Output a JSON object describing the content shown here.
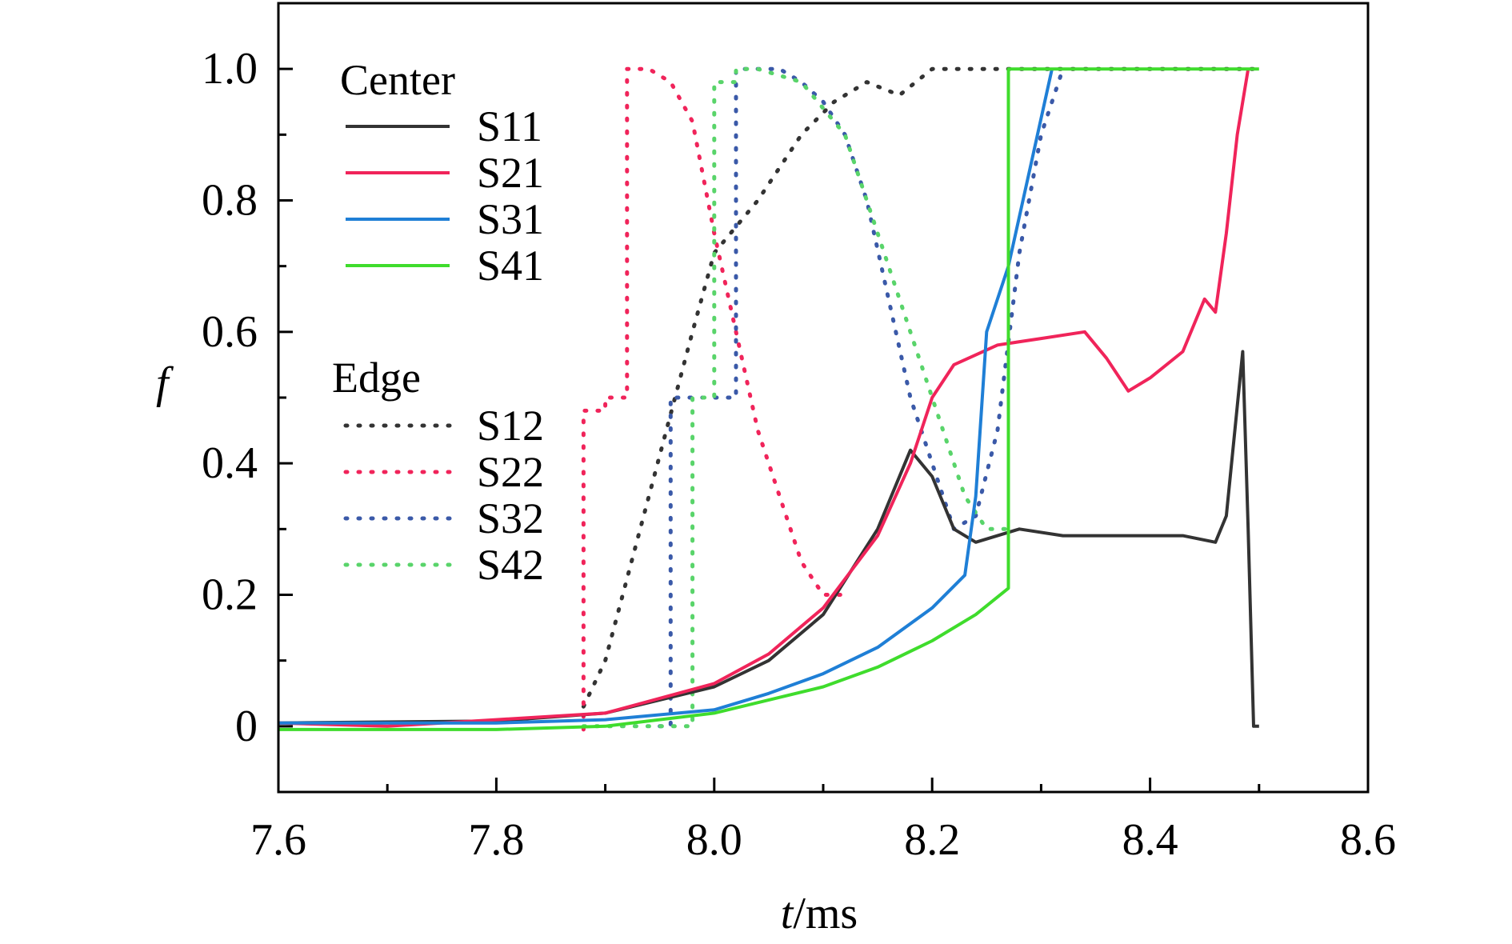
{
  "chart_data": {
    "type": "line",
    "title": "",
    "xlabel": {
      "italic": "t",
      "rest": "/ms"
    },
    "ylabel": "f",
    "xlim": [
      7.6,
      8.6
    ],
    "ylim": [
      -0.1,
      1.1
    ],
    "xticks": [
      7.6,
      7.8,
      8.0,
      8.2,
      8.4,
      8.6
    ],
    "xtick_labels": [
      "7.6",
      "7.8",
      "8.0",
      "8.2",
      "8.4",
      "8.6"
    ],
    "yticks": [
      0,
      0.2,
      0.4,
      0.6,
      0.8,
      1.0
    ],
    "ytick_labels": [
      "0",
      "0.2",
      "0.4",
      "0.6",
      "0.8",
      "1.0"
    ],
    "grid": false,
    "legend": {
      "position": "top-left",
      "groups": [
        {
          "title": "Center",
          "entries": [
            "S11",
            "S21",
            "S31",
            "S41"
          ]
        },
        {
          "title": "Edge",
          "entries": [
            "S12",
            "S22",
            "S32",
            "S42"
          ]
        }
      ]
    },
    "series": [
      {
        "name": "S11",
        "color": "#333333",
        "style": "solid",
        "x": [
          7.6,
          7.8,
          7.9,
          8.0,
          8.05,
          8.1,
          8.15,
          8.18,
          8.2,
          8.22,
          8.24,
          8.26,
          8.28,
          8.32,
          8.38,
          8.43,
          8.46,
          8.47,
          8.485,
          8.49,
          8.495,
          8.5
        ],
        "y": [
          0.005,
          0.008,
          0.02,
          0.06,
          0.1,
          0.17,
          0.3,
          0.42,
          0.38,
          0.3,
          0.28,
          0.29,
          0.3,
          0.29,
          0.29,
          0.29,
          0.28,
          0.32,
          0.57,
          0.3,
          0.0,
          0.0
        ]
      },
      {
        "name": "S21",
        "color": "#f0245a",
        "style": "solid",
        "x": [
          7.6,
          7.7,
          7.8,
          7.9,
          8.0,
          8.05,
          8.1,
          8.15,
          8.18,
          8.2,
          8.22,
          8.26,
          8.3,
          8.34,
          8.36,
          8.38,
          8.4,
          8.43,
          8.45,
          8.46,
          8.47,
          8.48,
          8.49
        ],
        "y": [
          0.005,
          0.0,
          0.01,
          0.02,
          0.065,
          0.11,
          0.18,
          0.29,
          0.4,
          0.5,
          0.55,
          0.58,
          0.59,
          0.6,
          0.56,
          0.51,
          0.53,
          0.57,
          0.65,
          0.63,
          0.75,
          0.9,
          1.0
        ]
      },
      {
        "name": "S31",
        "color": "#1f7fd6",
        "style": "solid",
        "x": [
          7.6,
          7.8,
          7.9,
          8.0,
          8.05,
          8.1,
          8.15,
          8.2,
          8.23,
          8.24,
          8.25,
          8.27,
          8.29,
          8.31
        ],
        "y": [
          0.005,
          0.005,
          0.01,
          0.025,
          0.05,
          0.08,
          0.12,
          0.18,
          0.23,
          0.35,
          0.6,
          0.7,
          0.85,
          1.0
        ]
      },
      {
        "name": "S41",
        "color": "#3fdc2c",
        "style": "solid",
        "x": [
          7.6,
          7.8,
          7.9,
          8.0,
          8.1,
          8.15,
          8.2,
          8.24,
          8.27,
          8.27,
          8.5
        ],
        "y": [
          -0.005,
          -0.005,
          0.0,
          0.02,
          0.06,
          0.09,
          0.13,
          0.17,
          0.21,
          1.0,
          1.0
        ]
      },
      {
        "name": "S12",
        "color": "#333333",
        "style": "dotted",
        "x": [
          7.88,
          7.9,
          7.94,
          7.98,
          8.0,
          8.04,
          8.08,
          8.11,
          8.14,
          8.17,
          8.2,
          8.3,
          8.5
        ],
        "y": [
          0.03,
          0.1,
          0.35,
          0.6,
          0.72,
          0.8,
          0.9,
          0.95,
          0.98,
          0.96,
          1.0,
          1.0,
          1.0
        ]
      },
      {
        "name": "S22",
        "color": "#f0245a",
        "style": "dotted",
        "x": [
          7.88,
          7.88,
          7.9,
          7.9,
          7.92,
          7.92,
          7.94,
          7.96,
          7.98,
          8.0,
          8.02,
          8.04,
          8.06,
          8.08,
          8.1,
          8.12
        ],
        "y": [
          -0.005,
          0.48,
          0.48,
          0.5,
          0.5,
          1.0,
          1.0,
          0.98,
          0.92,
          0.75,
          0.6,
          0.45,
          0.35,
          0.25,
          0.2,
          0.2
        ]
      },
      {
        "name": "S32",
        "color": "#3a59a8",
        "style": "dotted",
        "x": [
          7.95,
          7.96,
          7.96,
          7.98,
          8.0,
          8.02,
          8.02,
          8.04,
          8.06,
          8.08,
          8.1,
          8.12,
          8.14,
          8.16,
          8.18,
          8.2,
          8.22,
          8.24,
          8.26,
          8.28,
          8.3,
          8.32
        ],
        "y": [
          0.0,
          0.0,
          0.5,
          0.5,
          0.5,
          0.5,
          1.0,
          1.0,
          1.0,
          0.98,
          0.95,
          0.9,
          0.8,
          0.65,
          0.5,
          0.4,
          0.3,
          0.32,
          0.45,
          0.72,
          0.9,
          1.0
        ]
      },
      {
        "name": "S42",
        "color": "#59d46a",
        "style": "dotted",
        "x": [
          7.88,
          7.95,
          7.98,
          7.98,
          8.0,
          8.0,
          8.02,
          8.02,
          8.04,
          8.08,
          8.12,
          8.16,
          8.2,
          8.23,
          8.25,
          8.27
        ],
        "y": [
          0.0,
          0.0,
          0.0,
          0.5,
          0.5,
          0.98,
          0.98,
          1.0,
          1.0,
          0.98,
          0.9,
          0.7,
          0.5,
          0.35,
          0.3,
          0.3
        ]
      }
    ]
  }
}
